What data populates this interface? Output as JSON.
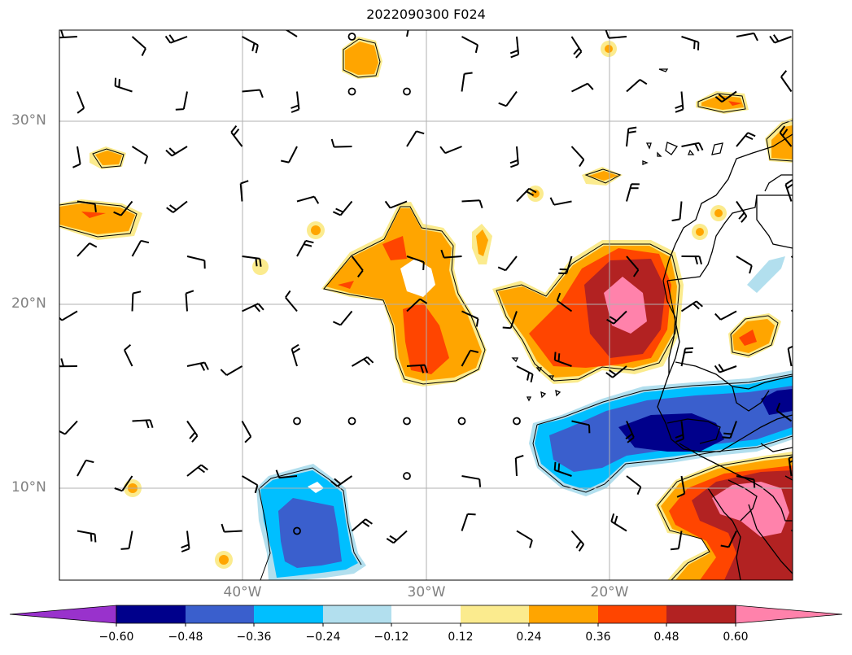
{
  "title": "2022090300 F024",
  "lat_labels": [
    "30°N",
    "20°N",
    "10°N"
  ],
  "lon_labels": [
    "40°W",
    "30°W",
    "20°W"
  ],
  "colorbar": {
    "labels": [
      "−0.60",
      "−0.48",
      "−0.36",
      "−0.24",
      "−0.12",
      "0.12",
      "0.24",
      "0.36",
      "0.48",
      "0.60"
    ],
    "colors": [
      "#9932cc",
      "#00008b",
      "#3a5fcd",
      "#00bfff",
      "#b2dfee",
      "#ffffff",
      "#fbeb8e",
      "#ffa500",
      "#ff4500",
      "#b22222",
      "#ff82ab"
    ]
  }
}
